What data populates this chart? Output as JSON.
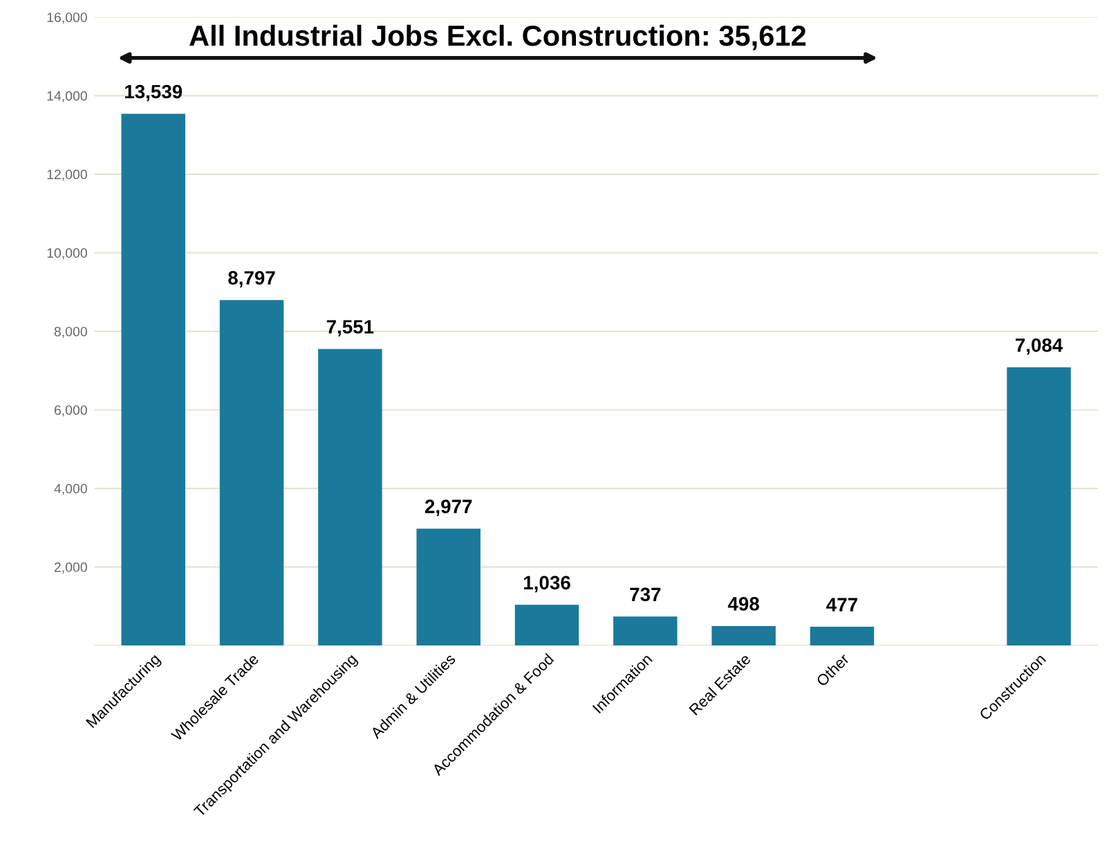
{
  "chart_data": {
    "type": "bar",
    "categories": [
      "Manufacturing",
      "Wholesale Trade",
      "Transportation and Warehousing",
      "Admin & Utilities",
      "Accommodation & Food",
      "Information",
      "Real Estate",
      "Other",
      null,
      "Construction"
    ],
    "values": [
      13539,
      8797,
      7551,
      2977,
      1036,
      737,
      498,
      477,
      null,
      7084
    ],
    "value_labels": [
      "13,539",
      "8,797",
      "7,551",
      "2,977",
      "1,036",
      "737",
      "498",
      "477",
      null,
      "7,084"
    ],
    "color": "#1b7a9b",
    "ylim": [
      0,
      16000
    ],
    "yticks": [
      {
        "value": 0,
        "label": null
      },
      {
        "value": 2000,
        "label": "2,000"
      },
      {
        "value": 4000,
        "label": "4,000"
      },
      {
        "value": 6000,
        "label": "6,000"
      },
      {
        "value": 8000,
        "label": "8,000"
      },
      {
        "value": 10000,
        "label": "10,000"
      },
      {
        "value": 12000,
        "label": "12,000"
      },
      {
        "value": 14000,
        "label": "14,000"
      },
      {
        "value": 16000,
        "label": "16,000"
      }
    ],
    "grid": "y",
    "annotations": [
      "All Industrial Jobs Excl. Construction: 35,612"
    ]
  }
}
